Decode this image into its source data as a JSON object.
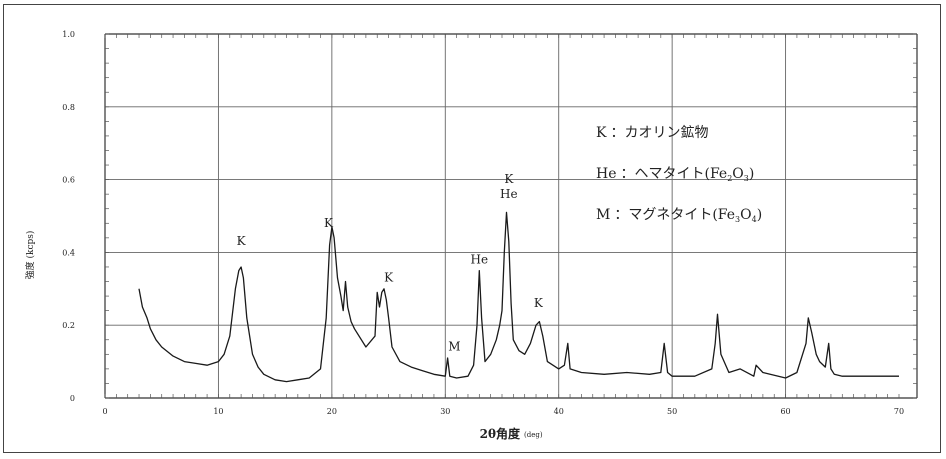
{
  "chart_data": {
    "type": "line",
    "title": "",
    "xlabel": "2θ角度",
    "xlabel_unit": "(deg)",
    "ylabel": "強度 (kcps)",
    "xlim": [
      0,
      70
    ],
    "ylim": [
      0,
      1.0
    ],
    "grid": true,
    "x_ticks": [
      "0",
      "10",
      "20",
      "30",
      "40",
      "50",
      "60",
      "70"
    ],
    "y_ticks": [
      "0",
      "0.2",
      "0.4",
      "0.6",
      "0.8",
      "1.0"
    ],
    "series": [
      {
        "x": [
          3.0,
          3.3,
          3.7,
          4.0,
          4.5,
          5.0,
          6.0,
          7.0,
          8.0,
          9.0,
          10.0,
          10.5,
          11.0,
          11.5,
          11.8,
          12.0,
          12.2,
          12.5,
          13.0,
          13.5,
          14.0,
          15.0,
          16.0,
          17.0,
          18.0,
          19.0,
          19.5,
          19.8,
          20.0,
          20.2,
          20.5,
          20.8,
          21.0,
          21.2,
          21.4,
          21.7,
          22.0,
          23.0,
          23.8,
          24.0,
          24.2,
          24.4,
          24.6,
          24.8,
          25.0,
          25.3,
          26.0,
          27.0,
          28.0,
          29.0,
          30.0,
          30.2,
          30.4,
          31.0,
          32.0,
          32.5,
          32.8,
          33.0,
          33.2,
          33.5,
          34.0,
          34.5,
          34.8,
          35.0,
          35.2,
          35.4,
          35.6,
          35.8,
          36.0,
          36.5,
          37.0,
          37.5,
          38.0,
          38.3,
          38.6,
          39.0,
          40.0,
          40.5,
          40.8,
          41.0,
          42.0,
          44.0,
          46.0,
          48.0,
          49.0,
          49.3,
          49.6,
          50.0,
          52.0,
          53.5,
          53.8,
          54.0,
          54.3,
          55.0,
          56.0,
          57.2,
          57.4,
          58.0,
          60.0,
          61.0,
          61.8,
          62.0,
          62.3,
          62.7,
          63.0,
          63.5,
          63.8,
          64.0,
          64.3,
          65.0,
          67.0,
          70.0
        ],
        "y": [
          0.3,
          0.25,
          0.22,
          0.19,
          0.16,
          0.14,
          0.115,
          0.1,
          0.095,
          0.09,
          0.1,
          0.12,
          0.17,
          0.3,
          0.35,
          0.36,
          0.33,
          0.22,
          0.12,
          0.085,
          0.065,
          0.05,
          0.045,
          0.05,
          0.055,
          0.08,
          0.22,
          0.42,
          0.47,
          0.44,
          0.33,
          0.28,
          0.24,
          0.32,
          0.25,
          0.21,
          0.19,
          0.14,
          0.17,
          0.29,
          0.25,
          0.29,
          0.3,
          0.27,
          0.22,
          0.14,
          0.1,
          0.085,
          0.075,
          0.065,
          0.06,
          0.11,
          0.06,
          0.055,
          0.06,
          0.09,
          0.2,
          0.35,
          0.22,
          0.1,
          0.12,
          0.16,
          0.2,
          0.24,
          0.4,
          0.51,
          0.43,
          0.26,
          0.16,
          0.13,
          0.12,
          0.15,
          0.2,
          0.21,
          0.17,
          0.1,
          0.08,
          0.09,
          0.15,
          0.08,
          0.07,
          0.065,
          0.07,
          0.065,
          0.07,
          0.15,
          0.07,
          0.06,
          0.06,
          0.08,
          0.15,
          0.23,
          0.12,
          0.07,
          0.08,
          0.06,
          0.09,
          0.07,
          0.055,
          0.07,
          0.15,
          0.22,
          0.18,
          0.12,
          0.1,
          0.085,
          0.15,
          0.08,
          0.065,
          0.06,
          0.06,
          0.06
        ]
      }
    ],
    "annotations": [
      {
        "text": "K",
        "x": 12.0,
        "y": 0.42
      },
      {
        "text": "K",
        "x": 19.7,
        "y": 0.47
      },
      {
        "text": "K",
        "x": 25.0,
        "y": 0.32
      },
      {
        "text": "He",
        "x": 33.0,
        "y": 0.37
      },
      {
        "text": "M",
        "x": 30.8,
        "y": 0.13
      },
      {
        "text": "K",
        "x": 35.6,
        "y": 0.59
      },
      {
        "text": "He",
        "x": 35.6,
        "y": 0.55
      },
      {
        "text": "K",
        "x": 38.2,
        "y": 0.25
      }
    ],
    "legend": {
      "placement": "top-right",
      "entries": [
        {
          "symbol": "K",
          "sep": "：",
          "name": "カオリン鉱物",
          "formula_parts": []
        },
        {
          "symbol": "He",
          "sep": "：",
          "name": "ヘマタイト",
          "formula_parts": [
            "(Fe",
            "2",
            "O",
            "3",
            ")"
          ]
        },
        {
          "symbol": "M",
          "sep": "：",
          "name": "マグネタイト",
          "formula_parts": [
            "(Fe",
            "3",
            "O",
            "4",
            ")"
          ]
        }
      ]
    }
  }
}
